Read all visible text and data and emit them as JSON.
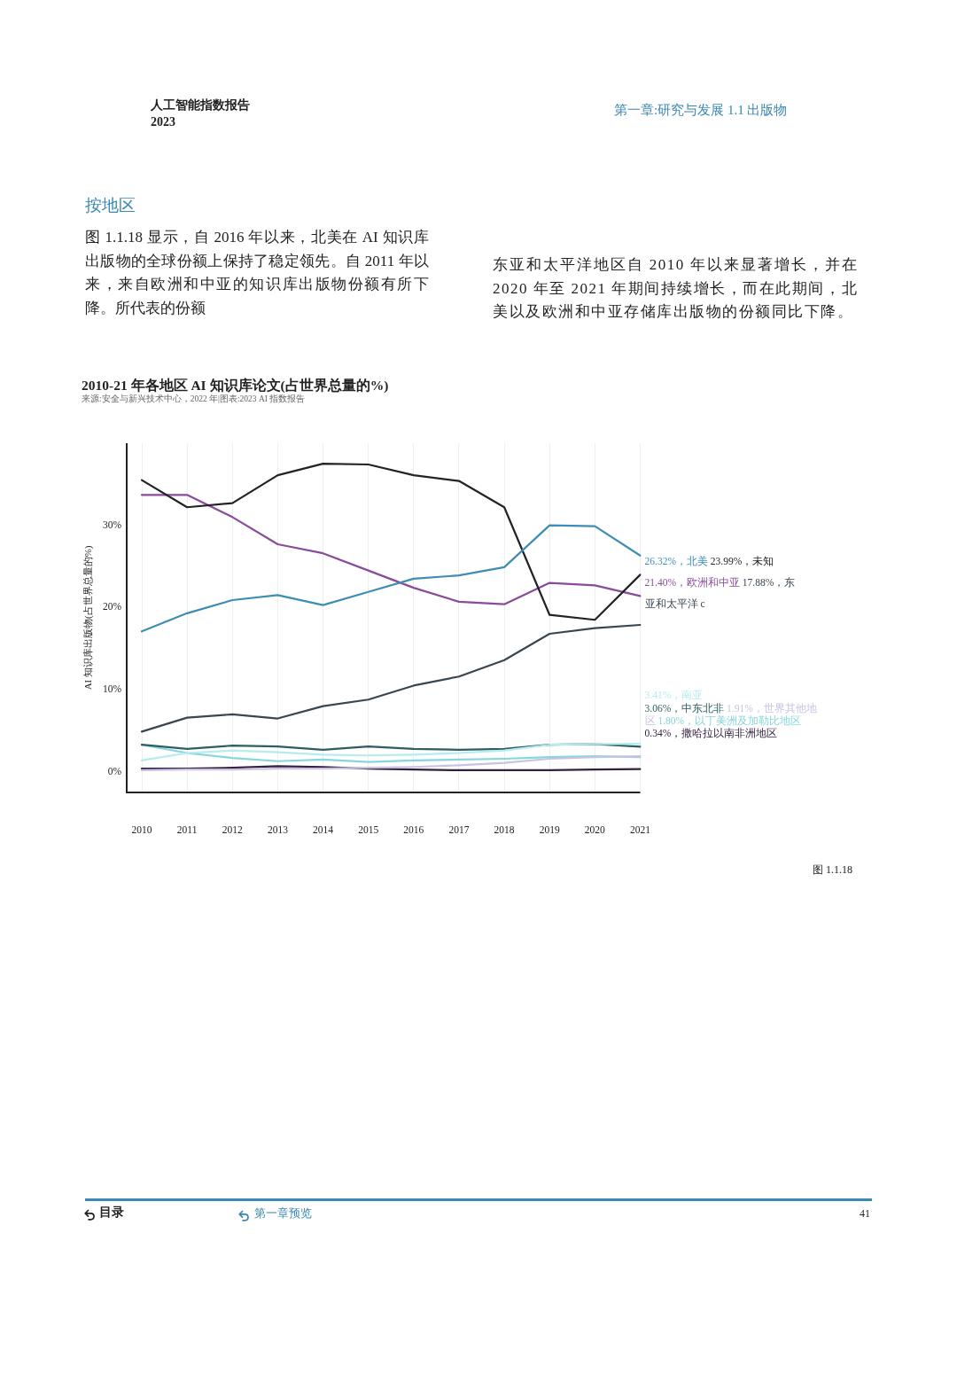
{
  "chart_data": {
    "type": "line",
    "title": "2010-21 年各地区 AI 知识库论文(占世界总量的%)",
    "subtitle": "来源:安全与新兴技术中心，2022 年|图表:2023 AI 指数报告",
    "ylabel": "AI 知识库出版物(占世界总量的%)",
    "categories": [
      "2010",
      "2011",
      "2012",
      "2013",
      "2014",
      "2015",
      "2016",
      "2017",
      "2018",
      "2019",
      "2020",
      "2021"
    ],
    "series": [
      {
        "name": "北美",
        "color": "#3d8db5",
        "values": [
          17.1,
          19.3,
          20.9,
          21.5,
          20.3,
          21.9,
          23.5,
          23.9,
          24.9,
          30.0,
          29.9,
          26.32
        ],
        "value_labels": [
          null,
          null,
          null,
          null,
          null,
          null,
          null,
          null,
          null,
          null,
          null,
          "26.32%，"
        ]
      },
      {
        "name": "未知",
        "color": "#222229",
        "values": [
          35.5,
          32.2,
          32.7,
          36.1,
          37.5,
          37.4,
          36.1,
          35.4,
          32.2,
          19.1,
          18.5,
          23.99
        ],
        "value_labels": [
          null,
          null,
          null,
          null,
          null,
          null,
          null,
          null,
          null,
          null,
          null,
          "23.99%，"
        ]
      },
      {
        "name": "欧洲和中亚",
        "color": "#8b4b9b",
        "values": [
          33.7,
          33.7,
          31.0,
          27.7,
          26.6,
          24.5,
          22.4,
          20.7,
          20.4,
          23.0,
          22.7,
          21.4
        ],
        "value_labels": [
          null,
          null,
          null,
          null,
          null,
          null,
          null,
          null,
          null,
          null,
          null,
          "21.40%，"
        ]
      },
      {
        "name": "东亚和太平洋 c",
        "color": "#3a4650",
        "values": [
          4.9,
          6.6,
          7.0,
          6.5,
          8.0,
          8.8,
          10.5,
          11.6,
          13.6,
          16.8,
          17.5,
          17.88
        ],
        "value_labels": [
          null,
          null,
          null,
          null,
          null,
          null,
          null,
          null,
          null,
          null,
          null,
          "17.88%，"
        ]
      },
      {
        "name": "南亚",
        "color": "#b5ecef",
        "values": [
          1.4,
          2.3,
          2.6,
          2.4,
          2.1,
          2.0,
          2.1,
          2.3,
          2.6,
          3.3,
          3.4,
          3.41
        ],
        "value_labels": [
          null,
          null,
          null,
          null,
          null,
          null,
          null,
          null,
          null,
          null,
          null,
          "3.41%，"
        ]
      },
      {
        "name": "中东北非",
        "color": "#2d5e62",
        "values": [
          3.3,
          2.8,
          3.2,
          3.1,
          2.7,
          3.1,
          2.8,
          2.7,
          2.8,
          3.3,
          3.4,
          3.06
        ],
        "value_labels": [
          null,
          null,
          null,
          null,
          null,
          null,
          null,
          null,
          null,
          null,
          null,
          "3.06%，"
        ]
      },
      {
        "name": "世界其他地区",
        "color": "#c9c3e3",
        "values": [
          0.2,
          0.3,
          0.3,
          0.4,
          0.4,
          0.5,
          0.6,
          0.8,
          1.1,
          1.6,
          1.8,
          1.91
        ],
        "value_labels": [
          null,
          null,
          null,
          null,
          null,
          null,
          null,
          null,
          null,
          null,
          null,
          "1.91%，"
        ]
      },
      {
        "name": "以丁美洲及加勒比地区",
        "color": "#86d6dd",
        "values": [
          3.3,
          2.3,
          1.7,
          1.3,
          1.5,
          1.2,
          1.4,
          1.5,
          1.6,
          1.8,
          1.9,
          1.8
        ],
        "value_labels": [
          null,
          null,
          null,
          null,
          null,
          null,
          null,
          null,
          null,
          null,
          null,
          "1.80%，"
        ]
      },
      {
        "name": "撒哈拉以南非洲地区",
        "color": "#33203f",
        "values": [
          0.4,
          0.4,
          0.5,
          0.7,
          0.6,
          0.4,
          0.3,
          0.2,
          0.2,
          0.2,
          0.3,
          0.34
        ],
        "value_labels": [
          null,
          null,
          null,
          null,
          null,
          null,
          null,
          null,
          null,
          null,
          null,
          "0.34%，"
        ]
      }
    ],
    "ylim": [
      -2.5,
      40
    ],
    "yticks": [
      {
        "value": 0,
        "label": "0%"
      },
      {
        "value": 10,
        "label": "10%"
      },
      {
        "value": 20,
        "label": "20%"
      },
      {
        "value": 30,
        "label": "30%"
      }
    ],
    "grid": "x",
    "annotations": [
      "人工智能指数报告",
      "2023",
      "第一章:研究与发展 1.1 出版物",
      "按地区",
      "图 1.1.18 显示，自 2016 年以来，北美在 AI 知识库出版物的全球份额上保持了稳定领先。自 2011 年以来，来自欧洲和中亚的知识库出版物份额有所下降。所代表的份额",
      "东亚和太平洋地区自 2010 年以来显著增长，并在 2020 年至 2021 年期间持续增长，而在此期间，北美以及欧洲和中亚存储库出版物的份额同比下降。",
      "图 1.1.18",
      "目录",
      "第一章预览",
      "41"
    ]
  }
}
